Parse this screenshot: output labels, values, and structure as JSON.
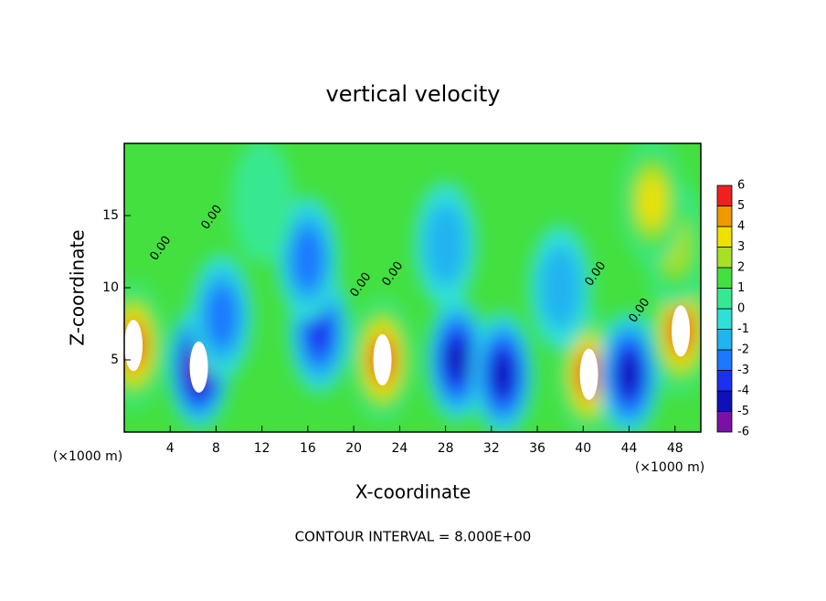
{
  "chart_data": {
    "type": "contour",
    "title": "vertical velocity",
    "x_label": "X-coordinate",
    "y_label": "Z-coordinate",
    "x_unit_left": "(×1000 m)",
    "x_unit_right": "(×1000 m)",
    "footer": "CONTOUR INTERVAL = 8.000E+00",
    "contour_labels": [
      "0.00",
      "0.00",
      "0.00",
      "0.00",
      "0.00",
      "0.00"
    ],
    "xlim": [
      0,
      50.25
    ],
    "ylim": [
      0,
      20
    ],
    "xticks": [
      4,
      8,
      12,
      16,
      20,
      24,
      28,
      32,
      36,
      40,
      44,
      48
    ],
    "yticks": [
      5,
      10,
      15
    ],
    "background_color": "#44e040",
    "colorbar": {
      "levels": [
        -6,
        -5,
        -4,
        -3,
        -2,
        -1,
        0,
        1,
        2,
        3,
        4,
        5,
        6
      ],
      "colors": [
        "#7a10a8",
        "#1010b8",
        "#1c30f0",
        "#1c78ff",
        "#20b4f0",
        "#30e0d8",
        "#38e890",
        "#44e040",
        "#a8e028",
        "#f0e000",
        "#f09a00",
        "#f02020",
        "#f08a8a"
      ]
    },
    "field": {
      "x": [
        0.8,
        6.5,
        8.5,
        17,
        16,
        22.5,
        29,
        33,
        40.5,
        44,
        48.5,
        48,
        28,
        38,
        12,
        46
      ],
      "z": [
        6,
        4.5,
        8,
        7,
        12,
        5,
        5,
        4,
        4,
        4,
        7,
        13,
        13,
        10,
        16,
        16
      ],
      "values": [
        6,
        -6,
        -3,
        -4,
        -3,
        6,
        -5,
        -5,
        6,
        -5,
        6,
        3,
        -1.5,
        -2,
        0.5,
        4
      ]
    }
  }
}
